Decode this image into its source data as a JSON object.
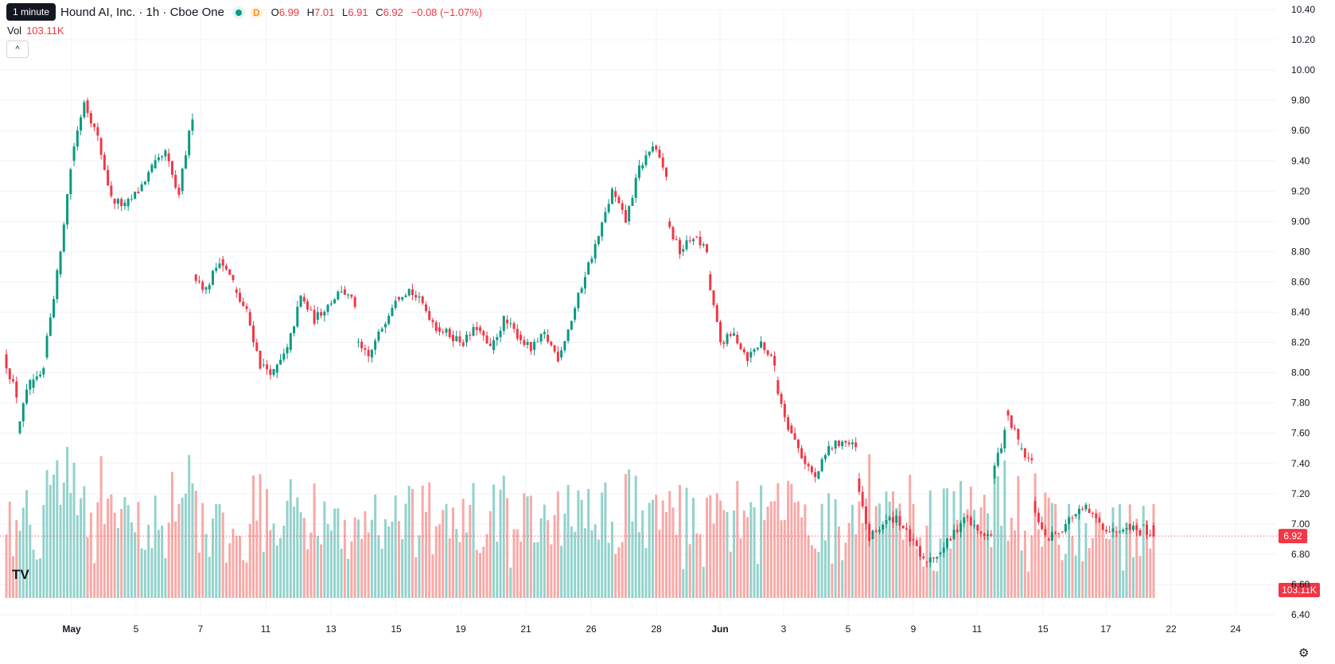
{
  "header": {
    "tooltip": "1 minute",
    "symbol_text": "Hound AI, Inc. · 1h · Cboe One",
    "status_letter": "D",
    "ohlc": [
      {
        "k": "O",
        "v": "6.99"
      },
      {
        "k": "H",
        "v": "7.01"
      },
      {
        "k": "L",
        "v": "6.91"
      },
      {
        "k": "C",
        "v": "6.92"
      },
      {
        "k": "",
        "v": "−0.08 (−1.07%)"
      }
    ],
    "vol_label": "Vol",
    "vol_value": "103.11K",
    "collapse_glyph": "^"
  },
  "colors": {
    "up": "#089981",
    "down": "#f23645",
    "up_vol": "#92d2cc",
    "down_vol": "#f7a9a7",
    "grid": "#f0f3fa"
  },
  "icons": {
    "logo": "tradingview-logo-icon",
    "settings": "gear-icon"
  },
  "chart_data": {
    "type": "candlestick",
    "price_axis": {
      "min": 6.4,
      "max": 10.4,
      "ticks": [
        "10.40",
        "10.20",
        "10.00",
        "9.80",
        "9.60",
        "9.40",
        "9.20",
        "9.00",
        "8.80",
        "8.60",
        "8.40",
        "8.20",
        "8.00",
        "7.80",
        "7.60",
        "7.40",
        "7.20",
        "7.00",
        "6.80",
        "6.60",
        "6.40"
      ]
    },
    "x_axis": {
      "labels": [
        "May",
        "5",
        "7",
        "11",
        "13",
        "15",
        "19",
        "21",
        "26",
        "28",
        "Jun",
        "3",
        "5",
        "9",
        "11",
        "15",
        "17",
        "22",
        "24"
      ],
      "bold": [
        "May",
        "Jun"
      ]
    },
    "last_price": "6.92",
    "last_volume": "103.11K",
    "anchors": [
      [
        8.12,
        7.85
      ],
      [
        7.6,
        7.95
      ],
      [
        7.9,
        8.0
      ],
      [
        8.1,
        8.65
      ],
      [
        8.65,
        9.35
      ],
      [
        9.4,
        9.8
      ],
      [
        9.8,
        9.55
      ],
      [
        9.55,
        9.15
      ],
      [
        9.15,
        9.1
      ],
      [
        9.1,
        9.2
      ],
      [
        9.2,
        9.35
      ],
      [
        9.35,
        9.45
      ],
      [
        9.45,
        9.15
      ],
      [
        9.2,
        9.7
      ],
      [
        8.65,
        8.55
      ],
      [
        8.55,
        8.75
      ],
      [
        8.75,
        8.6
      ],
      [
        8.55,
        8.4
      ],
      [
        8.4,
        8.05
      ],
      [
        8.05,
        8.0
      ],
      [
        8.0,
        8.15
      ],
      [
        8.15,
        8.5
      ],
      [
        8.5,
        8.35
      ],
      [
        8.35,
        8.45
      ],
      [
        8.45,
        8.55
      ],
      [
        8.55,
        8.45
      ],
      [
        8.2,
        8.1
      ],
      [
        8.1,
        8.3
      ],
      [
        8.3,
        8.5
      ],
      [
        8.5,
        8.55
      ],
      [
        8.55,
        8.45
      ],
      [
        8.45,
        8.3
      ],
      [
        8.3,
        8.25
      ],
      [
        8.25,
        8.2
      ],
      [
        8.2,
        8.3
      ],
      [
        8.3,
        8.15
      ],
      [
        8.15,
        8.35
      ],
      [
        8.35,
        8.25
      ],
      [
        8.25,
        8.15
      ],
      [
        8.15,
        8.25
      ],
      [
        8.25,
        8.1
      ],
      [
        8.1,
        8.35
      ],
      [
        8.35,
        8.65
      ],
      [
        8.65,
        8.9
      ],
      [
        8.9,
        9.2
      ],
      [
        9.2,
        9.0
      ],
      [
        9.0,
        9.35
      ],
      [
        9.35,
        9.5
      ],
      [
        9.5,
        9.3
      ],
      [
        9.0,
        8.8
      ],
      [
        8.8,
        8.9
      ],
      [
        8.9,
        8.8
      ],
      [
        8.65,
        8.2
      ],
      [
        8.2,
        8.25
      ],
      [
        8.25,
        8.1
      ],
      [
        8.1,
        8.2
      ],
      [
        8.2,
        8.05
      ],
      [
        7.95,
        7.65
      ],
      [
        7.65,
        7.45
      ],
      [
        7.45,
        7.3
      ],
      [
        7.3,
        7.5
      ],
      [
        7.5,
        7.55
      ],
      [
        7.55,
        7.5
      ],
      [
        7.3,
        6.9
      ],
      [
        6.9,
        7.0
      ],
      [
        7.0,
        7.05
      ],
      [
        7.05,
        6.9
      ],
      [
        6.9,
        6.75
      ],
      [
        6.75,
        6.8
      ],
      [
        6.8,
        6.9
      ],
      [
        6.9,
        7.05
      ],
      [
        7.05,
        6.95
      ],
      [
        6.95,
        6.92
      ],
      [
        7.3,
        7.6
      ],
      [
        7.75,
        7.55
      ],
      [
        7.5,
        7.4
      ],
      [
        7.15,
        6.9
      ],
      [
        6.9,
        6.95
      ],
      [
        6.95,
        7.05
      ],
      [
        7.05,
        7.1
      ],
      [
        7.1,
        7.0
      ],
      [
        7.0,
        6.95
      ],
      [
        6.95,
        7.0
      ],
      [
        7.0,
        6.95
      ],
      [
        6.99,
        6.92
      ]
    ]
  }
}
